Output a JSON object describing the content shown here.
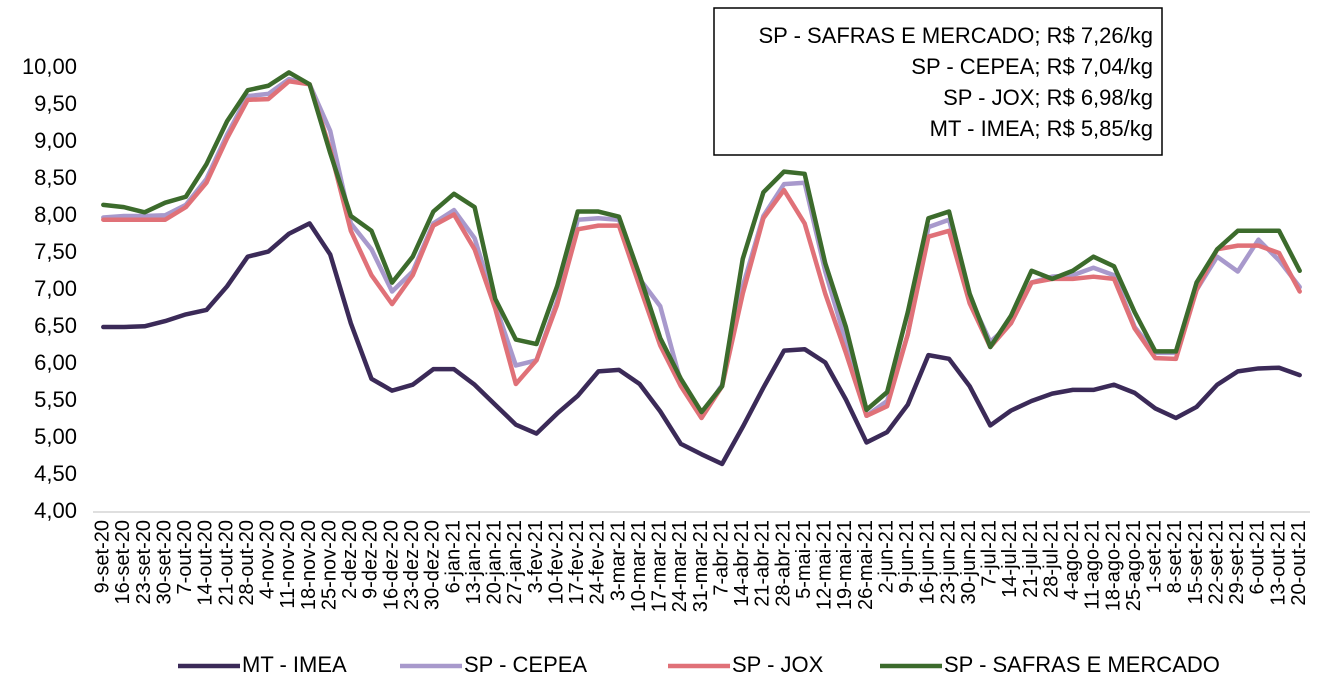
{
  "chart_data": {
    "type": "line",
    "categories": [
      "9-set-20",
      "16-set-20",
      "23-set-20",
      "30-set-20",
      "7-out-20",
      "14-out-20",
      "21-out-20",
      "28-out-20",
      "4-nov-20",
      "11-nov-20",
      "18-nov-20",
      "25-nov-20",
      "2-dez-20",
      "9-dez-20",
      "16-dez-20",
      "23-dez-20",
      "30-dez-20",
      "6-jan-21",
      "13-jan-21",
      "20-jan-21",
      "27-jan-21",
      "3-fev-21",
      "10-fev-21",
      "17-fev-21",
      "24-fev-21",
      "3-mar-21",
      "10-mar-21",
      "17-mar-21",
      "24-mar-21",
      "31-mar-21",
      "7-abr-21",
      "14-abr-21",
      "21-abr-21",
      "28-abr-21",
      "5-mai-21",
      "12-mai-21",
      "19-mai-21",
      "26-mai-21",
      "2-jun-21",
      "9-jun-21",
      "16-jun-21",
      "23-jun-21",
      "30-jun-21",
      "7-jul-21",
      "14-jul-21",
      "21-jul-21",
      "28-jul-21",
      "4-ago-21",
      "11-ago-21",
      "18-ago-21",
      "25-ago-21",
      "1-set-21",
      "8-set-21",
      "15-set-21",
      "22-set-21",
      "29-set-21",
      "6-out-21",
      "13-out-21",
      "20-out-21"
    ],
    "series": [
      {
        "name": "MT - IMEA",
        "color": "#3b2a58",
        "values": [
          6.5,
          6.5,
          6.51,
          6.58,
          6.67,
          6.73,
          7.05,
          7.45,
          7.52,
          7.76,
          7.9,
          7.48,
          6.55,
          5.8,
          5.64,
          5.72,
          5.93,
          5.93,
          5.72,
          5.45,
          5.18,
          5.06,
          5.33,
          5.57,
          5.9,
          5.92,
          5.73,
          5.36,
          4.92,
          4.78,
          4.65,
          5.15,
          5.68,
          6.18,
          6.2,
          6.02,
          5.52,
          4.94,
          5.08,
          5.45,
          6.12,
          6.07,
          5.7,
          5.17,
          5.37,
          5.5,
          5.6,
          5.65,
          5.65,
          5.72,
          5.61,
          5.4,
          5.27,
          5.42,
          5.72,
          5.9,
          5.94,
          5.95,
          5.85
        ]
      },
      {
        "name": "SP - CEPEA",
        "color": "#a899cc",
        "values": [
          7.98,
          8.0,
          8.0,
          8.01,
          8.15,
          8.5,
          9.1,
          9.62,
          9.65,
          9.85,
          9.78,
          9.15,
          7.9,
          7.55,
          6.98,
          7.25,
          7.9,
          8.08,
          7.7,
          6.8,
          5.98,
          6.05,
          6.85,
          7.95,
          7.97,
          7.95,
          7.15,
          6.78,
          5.75,
          5.3,
          5.72,
          7.05,
          8.0,
          8.43,
          8.45,
          7.25,
          6.3,
          5.3,
          5.5,
          6.4,
          7.85,
          7.95,
          6.9,
          6.3,
          6.55,
          7.1,
          7.18,
          7.2,
          7.3,
          7.2,
          6.5,
          6.15,
          6.15,
          7.0,
          7.45,
          7.25,
          7.68,
          7.4,
          7.04
        ]
      },
      {
        "name": "SP - JOX",
        "color": "#e07178",
        "values": [
          7.95,
          7.95,
          7.95,
          7.95,
          8.12,
          8.45,
          9.05,
          9.57,
          9.58,
          9.82,
          9.78,
          8.9,
          7.8,
          7.2,
          6.81,
          7.2,
          7.87,
          8.02,
          7.55,
          6.75,
          5.73,
          6.05,
          6.8,
          7.82,
          7.87,
          7.87,
          7.05,
          6.25,
          5.7,
          5.27,
          5.7,
          6.95,
          7.97,
          8.35,
          7.9,
          6.95,
          6.15,
          5.3,
          5.43,
          6.4,
          7.72,
          7.8,
          6.82,
          6.23,
          6.55,
          7.1,
          7.15,
          7.15,
          7.18,
          7.15,
          6.48,
          6.08,
          6.07,
          7.0,
          7.55,
          7.6,
          7.6,
          7.5,
          6.98
        ]
      },
      {
        "name": "SP - SAFRAS E MERCADO",
        "color": "#3c6b2c",
        "values": [
          8.15,
          8.12,
          8.05,
          8.18,
          8.26,
          8.7,
          9.28,
          9.7,
          9.76,
          9.94,
          9.78,
          8.85,
          8.0,
          7.8,
          7.1,
          7.45,
          8.06,
          8.3,
          8.12,
          6.88,
          6.33,
          6.27,
          7.05,
          8.06,
          8.06,
          7.99,
          7.2,
          6.35,
          5.8,
          5.35,
          5.7,
          7.42,
          8.32,
          8.6,
          8.57,
          7.36,
          6.5,
          5.38,
          5.62,
          6.7,
          7.97,
          8.06,
          6.95,
          6.23,
          6.65,
          7.26,
          7.15,
          7.26,
          7.45,
          7.32,
          6.7,
          6.17,
          6.17,
          7.1,
          7.55,
          7.8,
          7.8,
          7.8,
          7.26
        ]
      }
    ],
    "ylim": [
      4,
      10
    ],
    "yticks": [
      {
        "value": 4,
        "label": "4,00"
      },
      {
        "value": 4.5,
        "label": "4,50"
      },
      {
        "value": 5,
        "label": "5,00"
      },
      {
        "value": 5.5,
        "label": "5,50"
      },
      {
        "value": 6,
        "label": "6,00"
      },
      {
        "value": 6.5,
        "label": "6,50"
      },
      {
        "value": 7,
        "label": "7,00"
      },
      {
        "value": 7.5,
        "label": "7,50"
      },
      {
        "value": 8,
        "label": "8,00"
      },
      {
        "value": 8.5,
        "label": "8,50"
      },
      {
        "value": 9,
        "label": "9,00"
      },
      {
        "value": 9.5,
        "label": "9,50"
      },
      {
        "value": 10,
        "label": "10,00"
      }
    ],
    "grid": false,
    "legend": "bottom",
    "annotations": [
      "SP - SAFRAS E MERCADO; R$ 7,26/kg",
      "SP - CEPEA; R$ 7,04/kg",
      "SP - JOX; R$ 6,98/kg",
      "MT - IMEA; R$ 5,85/kg"
    ]
  }
}
